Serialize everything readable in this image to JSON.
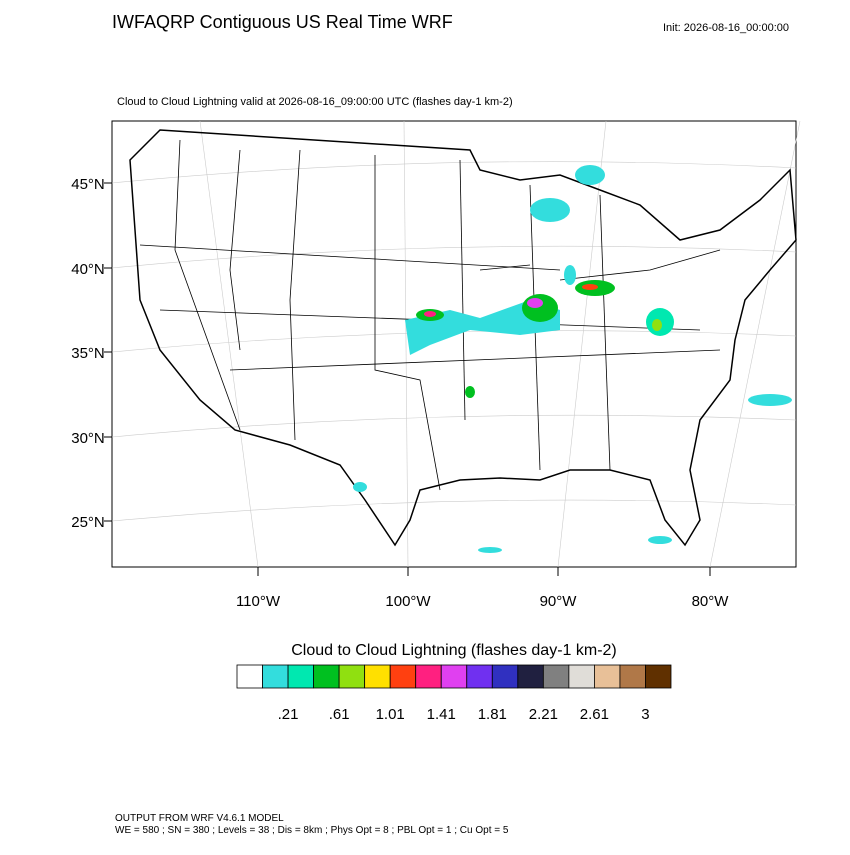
{
  "header": {
    "title": "IWFAQRP Contiguous US Real Time WRF",
    "init": "Init: 2026-08-16_00:00:00",
    "subtitle": "Cloud to Cloud Lightning valid at 2026-08-16_09:00:00 UTC   (flashes day-1 km-2)"
  },
  "map": {
    "lat_labels": [
      "45°N",
      "40°N",
      "35°N",
      "30°N",
      "25°N"
    ],
    "lon_labels": [
      "110°W",
      "100°W",
      "90°W",
      "80°W"
    ]
  },
  "colorbar": {
    "title": "Cloud to Cloud Lightning  (flashes day-1 km-2)",
    "colors": [
      "#ffffff",
      "#33dddd",
      "#00e8b0",
      "#00c020",
      "#90e010",
      "#ffe000",
      "#ff4010",
      "#ff2080",
      "#e040f0",
      "#7030f0",
      "#3030c0",
      "#202040",
      "#808080",
      "#e0ddd8",
      "#e8c098",
      "#b07848",
      "#603000"
    ],
    "labels": [
      ".21",
      ".61",
      "1.01",
      "1.41",
      "1.81",
      "2.21",
      "2.61",
      "3"
    ]
  },
  "footer": {
    "line1": "OUTPUT FROM WRF V4.6.1 MODEL",
    "line2": "WE = 580 ; SN = 380 ; Levels = 38 ; Dis = 8km ; Phys Opt = 8 ; PBL Opt = 1 ; Cu Opt = 5"
  }
}
